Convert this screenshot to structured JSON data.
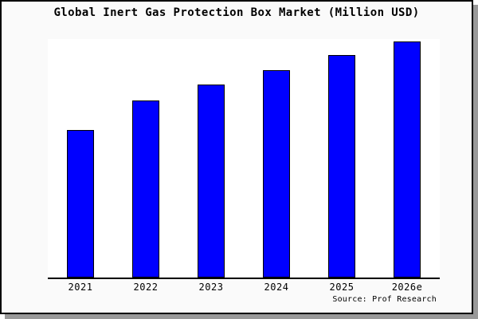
{
  "title": "Global Inert Gas Protection Box Market (Million USD)",
  "source_label": "Source: Prof Research",
  "colors": {
    "bar_fill": "#0000FF",
    "bar_border": "#000000",
    "plot_background": "#FFFFFF",
    "canvas_background": "#FAFAFA",
    "frame_border": "#000000",
    "shadow": "#999999",
    "text": "#000000"
  },
  "chart_data": {
    "type": "bar",
    "title": "Global Inert Gas Protection Box Market (Million USD)",
    "categories": [
      "2021",
      "2022",
      "2023",
      "2024",
      "2025",
      "2026e"
    ],
    "values": [
      62.9,
      75.3,
      81.9,
      88.0,
      94.3,
      100.0
    ],
    "value_note": "No y-axis scale shown; values are relative index with 2026e = 100, estimated from bar pixel heights 188/225/245/263/282/299",
    "xlabel": "",
    "ylabel": "",
    "ylim": [
      0,
      101
    ],
    "grid": false,
    "legend": "none",
    "y_axis_visible": false,
    "x_axis_line": true,
    "source": "Source: Prof Research"
  }
}
